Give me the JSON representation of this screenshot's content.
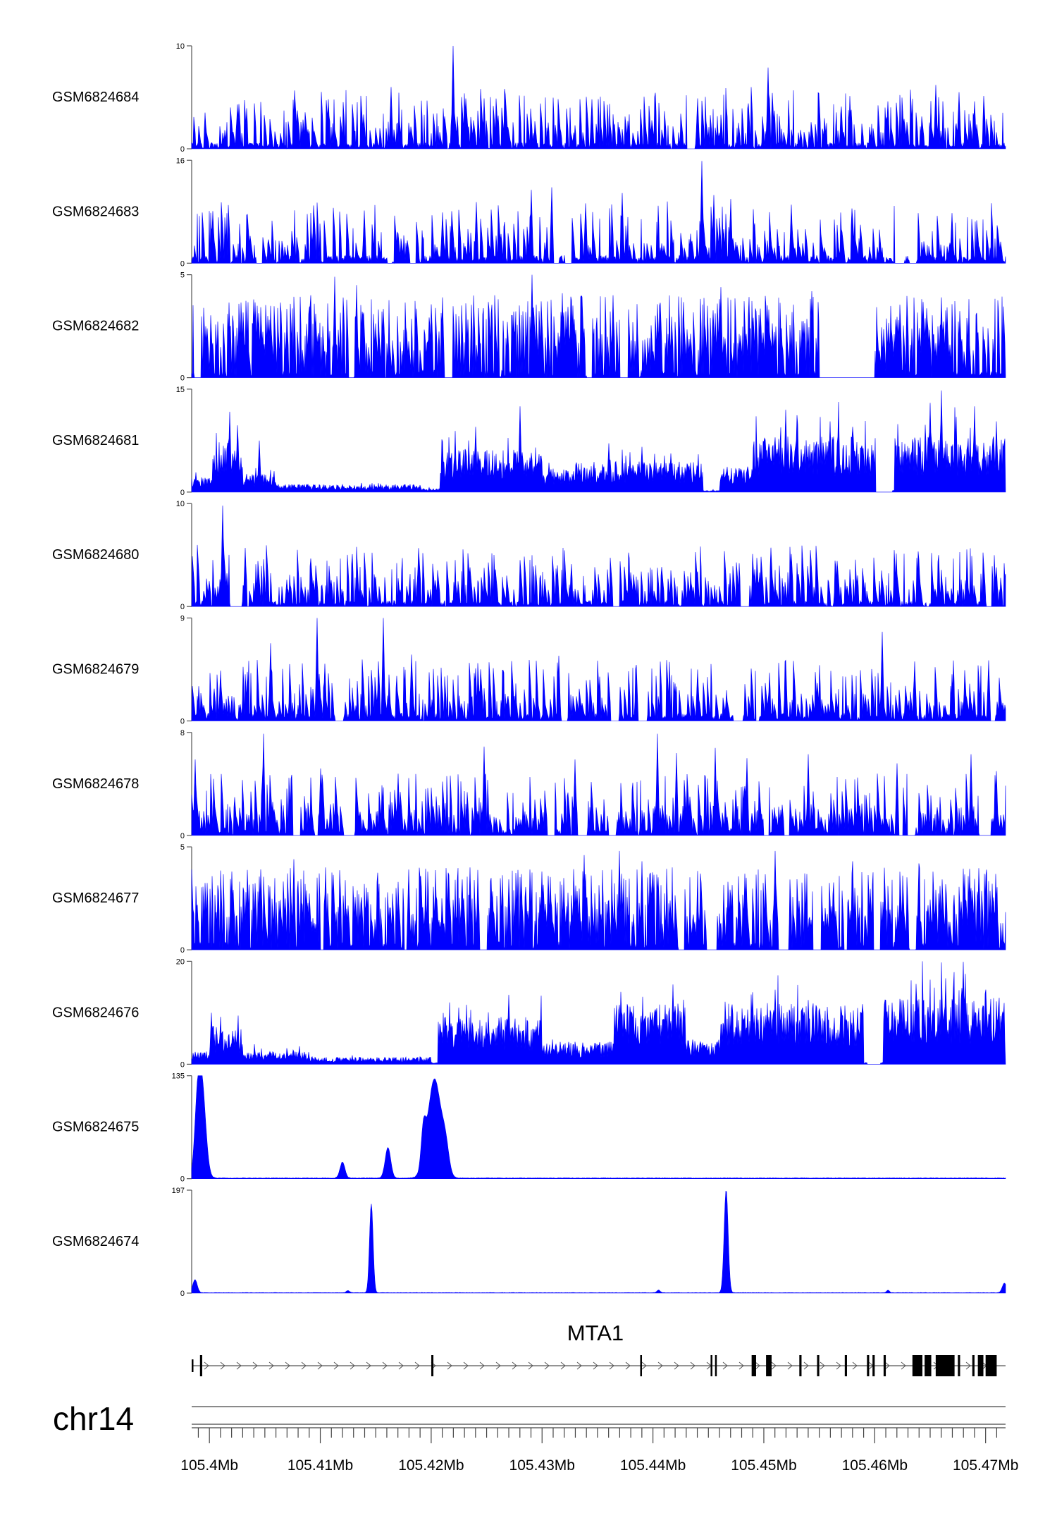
{
  "chart_data": {
    "type": "area",
    "title": "",
    "chromosome": "chr14",
    "gene": "MTA1",
    "x_unit": "Mb",
    "x_ticks": [
      105.4,
      105.41,
      105.42,
      105.43,
      105.44,
      105.45,
      105.46,
      105.47
    ],
    "x_tick_labels": [
      "105.4Mb",
      "105.41Mb",
      "105.42Mb",
      "105.43Mb",
      "105.44Mb",
      "105.45Mb",
      "105.46Mb",
      "105.47Mb"
    ],
    "xlim": [
      105.3984,
      105.4718
    ],
    "fill_color": "#0000ff",
    "gene_color": "#000000",
    "tracks": [
      {
        "name": "GSM6824684",
        "ylim": [
          0,
          10
        ],
        "ytick_labels": [
          "10",
          "0"
        ],
        "pattern": "sparse",
        "density": 0.36,
        "base": 0.3,
        "spikes": [
          [
            105.422,
            10.0
          ],
          [
            105.4504,
            7.9
          ],
          [
            105.4164,
            6.0
          ],
          [
            105.4655,
            6.2
          ],
          [
            105.4612,
            4.6
          ],
          [
            105.4676,
            5.5
          ],
          [
            105.4107,
            4.8
          ],
          [
            105.444,
            4.9
          ],
          [
            105.4345,
            4.8
          ],
          [
            105.4025,
            4.3
          ],
          [
            105.457,
            4.1
          ],
          [
            105.469,
            4.6
          ]
        ]
      },
      {
        "name": "GSM6824683",
        "ylim": [
          0,
          16
        ],
        "ytick_labels": [
          "16",
          "0"
        ],
        "pattern": "sparse",
        "density": 0.3,
        "base": 0.38,
        "spikes": [
          [
            105.4444,
            15.9
          ],
          [
            105.429,
            11.4
          ],
          [
            105.4309,
            11.8
          ],
          [
            105.4372,
            10.9
          ],
          [
            105.4455,
            10.6
          ],
          [
            105.4339,
            9.3
          ],
          [
            105.4241,
            9.5
          ],
          [
            105.447,
            10.0
          ],
          [
            105.4525,
            9.1
          ],
          [
            105.414,
            8.2
          ],
          [
            105.4003,
            8.1
          ],
          [
            105.467,
            7.8
          ],
          [
            105.421,
            7.9
          ],
          [
            105.458,
            7.0
          ]
        ]
      },
      {
        "name": "GSM6824682",
        "ylim": [
          0,
          5
        ],
        "ytick_labels": [
          "5",
          "0"
        ],
        "pattern": "dense",
        "density": 0.62,
        "base": 0.38,
        "spikes": [
          [
            105.4113,
            4.9
          ],
          [
            105.4291,
            5.0
          ],
          [
            105.4562,
            4.9
          ],
          [
            105.4543,
            4.2
          ],
          [
            105.4364,
            4.0
          ],
          [
            105.4461,
            4.4
          ],
          [
            105.4133,
            4.5
          ],
          [
            105.4318,
            4.1
          ],
          [
            105.458,
            4.0
          ],
          [
            105.421,
            3.9
          ],
          [
            105.404,
            3.8
          ],
          [
            105.466,
            3.9
          ]
        ],
        "dips": [
          [
            105.455,
            105.46
          ]
        ]
      },
      {
        "name": "GSM6824681",
        "ylim": [
          0,
          15
        ],
        "ytick_labels": [
          "15",
          "0"
        ],
        "pattern": "segments",
        "segments": [
          [
            105.3984,
            105.4003,
            1.8
          ],
          [
            105.4003,
            105.403,
            6.5
          ],
          [
            105.403,
            105.406,
            2.2
          ],
          [
            105.406,
            105.419,
            0.9
          ],
          [
            105.419,
            105.4208,
            0.4
          ],
          [
            105.4208,
            105.43,
            5.0
          ],
          [
            105.43,
            105.433,
            2.8
          ],
          [
            105.433,
            105.4445,
            3.6
          ],
          [
            105.4445,
            105.446,
            0.2
          ],
          [
            105.446,
            105.449,
            3.0
          ],
          [
            105.449,
            105.461,
            6.5
          ],
          [
            105.461,
            105.4618,
            0.3
          ],
          [
            105.4618,
            105.4718,
            6.5
          ]
        ],
        "spikes": [
          [
            105.4018,
            11.7
          ],
          [
            105.4045,
            7.5
          ],
          [
            105.428,
            12.5
          ],
          [
            105.466,
            14.8
          ],
          [
            105.4611,
            8.5
          ],
          [
            105.453,
            11.2
          ],
          [
            105.456,
            10.3
          ],
          [
            105.465,
            13.0
          ],
          [
            105.452,
            12.0
          ],
          [
            105.469,
            12.5
          ],
          [
            105.471,
            10.3
          ],
          [
            105.439,
            6.6
          ],
          [
            105.436,
            7.1
          ],
          [
            105.458,
            9.5
          ],
          [
            105.424,
            9.5
          ]
        ],
        "dips": [
          [
            105.4601,
            105.4616
          ]
        ]
      },
      {
        "name": "GSM6824680",
        "ylim": [
          0,
          10
        ],
        "ytick_labels": [
          "10",
          "0"
        ],
        "pattern": "sparse",
        "density": 0.4,
        "base": 0.3,
        "spikes": [
          [
            105.4012,
            9.8
          ],
          [
            105.4032,
            5.7
          ],
          [
            105.4314,
            4.0
          ],
          [
            105.4188,
            3.6
          ],
          [
            105.4235,
            3.8
          ],
          [
            105.4565,
            3.9
          ],
          [
            105.471,
            3.8
          ],
          [
            105.444,
            3.4
          ],
          [
            105.407,
            2.6
          ],
          [
            105.415,
            2.9
          ],
          [
            105.466,
            2.8
          ],
          [
            105.438,
            2.7
          ]
        ]
      },
      {
        "name": "GSM6824679",
        "ylim": [
          0,
          9
        ],
        "ytick_labels": [
          "9",
          "0"
        ],
        "pattern": "sparse",
        "density": 0.42,
        "base": 0.38,
        "spikes": [
          [
            105.4097,
            9.0
          ],
          [
            105.4157,
            9.0
          ],
          [
            105.4607,
            7.8
          ],
          [
            105.4055,
            6.8
          ],
          [
            105.4104,
            5.0
          ],
          [
            105.4182,
            5.8
          ],
          [
            105.4315,
            5.7
          ],
          [
            105.4703,
            5.3
          ],
          [
            105.452,
            5.3
          ],
          [
            105.4636,
            5.2
          ],
          [
            105.4385,
            4.9
          ],
          [
            105.424,
            4.6
          ],
          [
            105.401,
            4.4
          ],
          [
            105.444,
            4.5
          ]
        ]
      },
      {
        "name": "GSM6824678",
        "ylim": [
          0,
          8
        ],
        "ytick_labels": [
          "8",
          "0"
        ],
        "pattern": "sparse",
        "density": 0.5,
        "base": 0.4,
        "spikes": [
          [
            105.4049,
            7.9
          ],
          [
            105.4404,
            7.9
          ],
          [
            105.3987,
            5.9
          ],
          [
            105.4248,
            6.9
          ],
          [
            105.4456,
            6.8
          ],
          [
            105.4421,
            6.4
          ],
          [
            105.454,
            6.3
          ],
          [
            105.4687,
            6.3
          ],
          [
            105.471,
            5.0
          ],
          [
            105.41,
            5.2
          ],
          [
            105.417,
            4.8
          ],
          [
            105.433,
            5.9
          ],
          [
            105.462,
            5.6
          ],
          [
            105.4485,
            6.0
          ]
        ]
      },
      {
        "name": "GSM6824677",
        "ylim": [
          0,
          5
        ],
        "ytick_labels": [
          "5",
          "0"
        ],
        "pattern": "dense",
        "density": 0.65,
        "base": 0.42,
        "spikes": [
          [
            105.4338,
            4.6
          ],
          [
            105.437,
            4.8
          ],
          [
            105.451,
            4.8
          ],
          [
            105.439,
            4.3
          ],
          [
            105.4076,
            4.4
          ],
          [
            105.4235,
            4.0
          ],
          [
            105.458,
            4.3
          ],
          [
            105.464,
            4.2
          ],
          [
            105.4105,
            4.0
          ],
          [
            105.402,
            3.8
          ],
          [
            105.418,
            3.9
          ],
          [
            105.43,
            3.8
          ]
        ],
        "dips": [
          [
            105.4544,
            105.4552
          ]
        ]
      },
      {
        "name": "GSM6824676",
        "ylim": [
          0,
          20
        ],
        "ytick_labels": [
          "20",
          "0"
        ],
        "pattern": "segments",
        "segments": [
          [
            105.3984,
            105.4001,
            2.0
          ],
          [
            105.4001,
            105.403,
            6.0
          ],
          [
            105.403,
            105.409,
            2.0
          ],
          [
            105.409,
            105.42,
            1.1
          ],
          [
            105.42,
            105.4206,
            0.3
          ],
          [
            105.4206,
            105.43,
            7.5
          ],
          [
            105.43,
            105.431,
            4.0
          ],
          [
            105.431,
            105.4365,
            3.5
          ],
          [
            105.4365,
            105.443,
            9.5
          ],
          [
            105.443,
            105.446,
            4.0
          ],
          [
            105.446,
            105.451,
            9.5
          ],
          [
            105.451,
            105.459,
            9.5
          ],
          [
            105.459,
            105.4608,
            0.3
          ],
          [
            105.4608,
            105.4718,
            10.5
          ]
        ],
        "spikes": [
          [
            105.468,
            19.9
          ],
          [
            105.4664,
            16.7
          ],
          [
            105.4637,
            15.6
          ],
          [
            105.4595,
            14.0
          ],
          [
            105.4418,
            15.5
          ],
          [
            105.449,
            14.0
          ],
          [
            105.451,
            14.5
          ],
          [
            105.4225,
            11.0
          ],
          [
            105.427,
            13.5
          ],
          [
            105.4002,
            10.0
          ],
          [
            105.454,
            12.5
          ],
          [
            105.47,
            14.5
          ]
        ],
        "dips": [
          [
            105.4593,
            105.4605
          ]
        ]
      },
      {
        "name": "GSM6824675",
        "ylim": [
          0,
          135
        ],
        "ytick_labels": [
          "135",
          "0"
        ],
        "pattern": "peaks",
        "base": 0.8,
        "peaks": [
          [
            105.3993,
            125,
            0.00035
          ],
          [
            105.3989,
            60,
            0.00025
          ],
          [
            105.4203,
            130,
            0.0006
          ],
          [
            105.4193,
            45,
            0.0002
          ],
          [
            105.4213,
            30,
            0.0003
          ],
          [
            105.4161,
            40,
            0.00025
          ],
          [
            105.412,
            21,
            0.00022
          ]
        ]
      },
      {
        "name": "GSM6824674",
        "ylim": [
          0,
          197
        ],
        "ytick_labels": [
          "197",
          "0"
        ],
        "pattern": "peaks",
        "base": 0.8,
        "peaks": [
          [
            105.4466,
            197,
            0.00018
          ],
          [
            105.4146,
            170,
            0.00016
          ],
          [
            105.3987,
            25,
            0.0002
          ],
          [
            105.4717,
            18,
            0.0002
          ],
          [
            105.4405,
            5,
            0.00015
          ],
          [
            105.4612,
            5,
            0.00012
          ],
          [
            105.4125,
            4,
            0.00015
          ]
        ]
      }
    ],
    "gene_model": {
      "start": 105.3984,
      "end": 105.4718,
      "exons": [
        [
          105.3984,
          105.39855,
          "thin"
        ],
        [
          105.39915,
          105.39935,
          "thick"
        ],
        [
          105.42001,
          105.4202,
          "thick"
        ],
        [
          105.43885,
          105.43895,
          "thick"
        ],
        [
          105.4452,
          105.4453,
          "thick"
        ],
        [
          105.4456,
          105.4457,
          "thick"
        ],
        [
          105.4489,
          105.4493,
          "thick"
        ],
        [
          105.4502,
          105.4507,
          "thick"
        ],
        [
          105.4532,
          105.4534,
          "thick"
        ],
        [
          105.4548,
          105.455,
          "thick"
        ],
        [
          105.4573,
          105.4575,
          "thick"
        ],
        [
          105.4593,
          105.4595,
          "thick"
        ],
        [
          105.4598,
          105.46,
          "thick"
        ],
        [
          105.4608,
          105.461,
          "thick"
        ],
        [
          105.4634,
          105.4643,
          "thick"
        ],
        [
          105.4645,
          105.4651,
          "thick"
        ],
        [
          105.4655,
          105.4672,
          "thick"
        ],
        [
          105.4675,
          105.4677,
          "thick"
        ],
        [
          105.4688,
          105.469,
          "thick"
        ],
        [
          105.4693,
          105.4698,
          "thick"
        ],
        [
          105.47,
          105.471,
          "thick"
        ]
      ]
    }
  }
}
